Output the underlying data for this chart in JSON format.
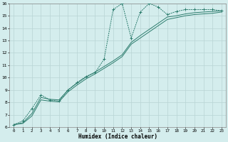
{
  "xlabel": "Humidex (Indice chaleur)",
  "bg_color": "#d4eded",
  "grid_color": "#b8d4d4",
  "line_color": "#2d7d6e",
  "xlim": [
    -0.5,
    23.5
  ],
  "ylim": [
    6,
    16
  ],
  "xticks": [
    0,
    1,
    2,
    3,
    4,
    5,
    6,
    7,
    8,
    9,
    10,
    11,
    12,
    13,
    14,
    15,
    16,
    17,
    18,
    19,
    20,
    21,
    22,
    23
  ],
  "yticks": [
    6,
    7,
    8,
    9,
    10,
    11,
    12,
    13,
    14,
    15,
    16
  ],
  "line1_x": [
    0,
    1,
    2,
    3,
    4,
    5,
    6,
    7,
    8,
    9,
    10,
    11,
    12,
    13,
    14,
    15,
    16,
    17,
    18,
    19,
    20,
    21,
    22,
    23
  ],
  "line1_y": [
    6.2,
    6.5,
    7.5,
    8.6,
    8.2,
    8.1,
    9.0,
    9.6,
    10.1,
    10.4,
    11.5,
    15.5,
    16.0,
    13.2,
    15.3,
    16.0,
    15.7,
    15.1,
    15.35,
    15.5,
    15.5,
    15.5,
    15.5,
    15.4
  ],
  "line2_x": [
    0,
    1,
    2,
    3,
    4,
    5,
    6,
    7,
    8,
    9,
    10,
    11,
    12,
    13,
    14,
    15,
    16,
    17,
    18,
    19,
    20,
    21,
    22,
    23
  ],
  "line2_y": [
    6.2,
    6.35,
    7.1,
    8.4,
    8.25,
    8.2,
    9.0,
    9.55,
    10.05,
    10.45,
    10.9,
    11.35,
    11.85,
    12.85,
    13.4,
    13.9,
    14.4,
    14.9,
    15.0,
    15.15,
    15.25,
    15.3,
    15.35,
    15.4
  ],
  "line3_x": [
    0,
    1,
    2,
    3,
    4,
    5,
    6,
    7,
    8,
    9,
    10,
    11,
    12,
    13,
    14,
    15,
    16,
    17,
    18,
    19,
    20,
    21,
    22,
    23
  ],
  "line3_y": [
    6.2,
    6.3,
    6.9,
    8.2,
    8.1,
    8.05,
    8.85,
    9.4,
    9.9,
    10.3,
    10.75,
    11.2,
    11.7,
    12.7,
    13.2,
    13.7,
    14.2,
    14.7,
    14.85,
    15.0,
    15.1,
    15.15,
    15.2,
    15.3
  ]
}
